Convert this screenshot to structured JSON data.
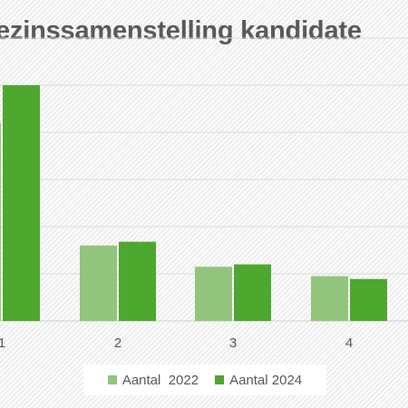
{
  "chart_data": {
    "type": "bar",
    "title": "ezinssamenstelling kandidate",
    "categories": [
      "1",
      "2",
      "3",
      "4"
    ],
    "series": [
      {
        "name": "Aantal  2022",
        "color": "#93c47d",
        "values": [
          42,
          16,
          11.5,
          9.5
        ]
      },
      {
        "name": "Aantal 2024",
        "color": "#4ea72e",
        "values": [
          50,
          16.8,
          12,
          8.9
        ]
      }
    ],
    "ylim": [
      0,
      60
    ],
    "grid": true,
    "legend_position": "bottom"
  }
}
